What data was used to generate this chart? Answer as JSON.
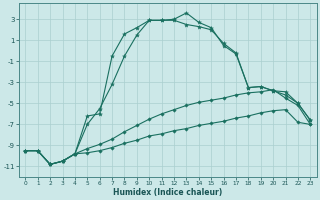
{
  "xlabel": "Humidex (Indice chaleur)",
  "background_color": "#cce8e8",
  "grid_color": "#aacfcf",
  "line_color": "#1a7060",
  "xlim": [
    -0.5,
    23.5
  ],
  "ylim": [
    -12,
    4.5
  ],
  "yticks": [
    3,
    1,
    -1,
    -3,
    -5,
    -7,
    -9,
    -11
  ],
  "xticks": [
    0,
    1,
    2,
    3,
    4,
    5,
    6,
    7,
    8,
    9,
    10,
    11,
    12,
    13,
    14,
    15,
    16,
    17,
    18,
    19,
    20,
    21,
    22,
    23
  ],
  "line1_y": [
    -9.5,
    -9.5,
    -10.8,
    -10.5,
    -9.8,
    -6.2,
    -6.0,
    -0.5,
    1.6,
    2.2,
    2.9,
    2.9,
    3.0,
    3.6,
    2.7,
    2.2,
    0.5,
    -0.3,
    -3.5,
    -3.4,
    -3.8,
    -3.9,
    -5.0,
    -6.6
  ],
  "line2_y": [
    -9.5,
    -9.5,
    -10.8,
    -10.5,
    -9.8,
    -7.0,
    -5.5,
    -3.2,
    -0.5,
    1.5,
    2.9,
    2.9,
    2.9,
    2.5,
    2.3,
    2.0,
    0.7,
    -0.2,
    -3.5,
    -3.4,
    -3.8,
    -4.2,
    -5.0,
    -6.6
  ],
  "line3_y": [
    -9.5,
    -9.5,
    -10.8,
    -10.5,
    -9.8,
    -9.3,
    -8.9,
    -8.4,
    -7.7,
    -7.1,
    -6.5,
    -6.0,
    -5.6,
    -5.2,
    -4.9,
    -4.7,
    -4.5,
    -4.2,
    -4.0,
    -3.9,
    -3.7,
    -4.5,
    -5.2,
    -7.0
  ],
  "line4_y": [
    -9.5,
    -9.5,
    -10.8,
    -10.5,
    -9.8,
    -9.7,
    -9.5,
    -9.2,
    -8.8,
    -8.5,
    -8.1,
    -7.9,
    -7.6,
    -7.4,
    -7.1,
    -6.9,
    -6.7,
    -6.4,
    -6.2,
    -5.9,
    -5.7,
    -5.6,
    -6.8,
    -7.0
  ]
}
